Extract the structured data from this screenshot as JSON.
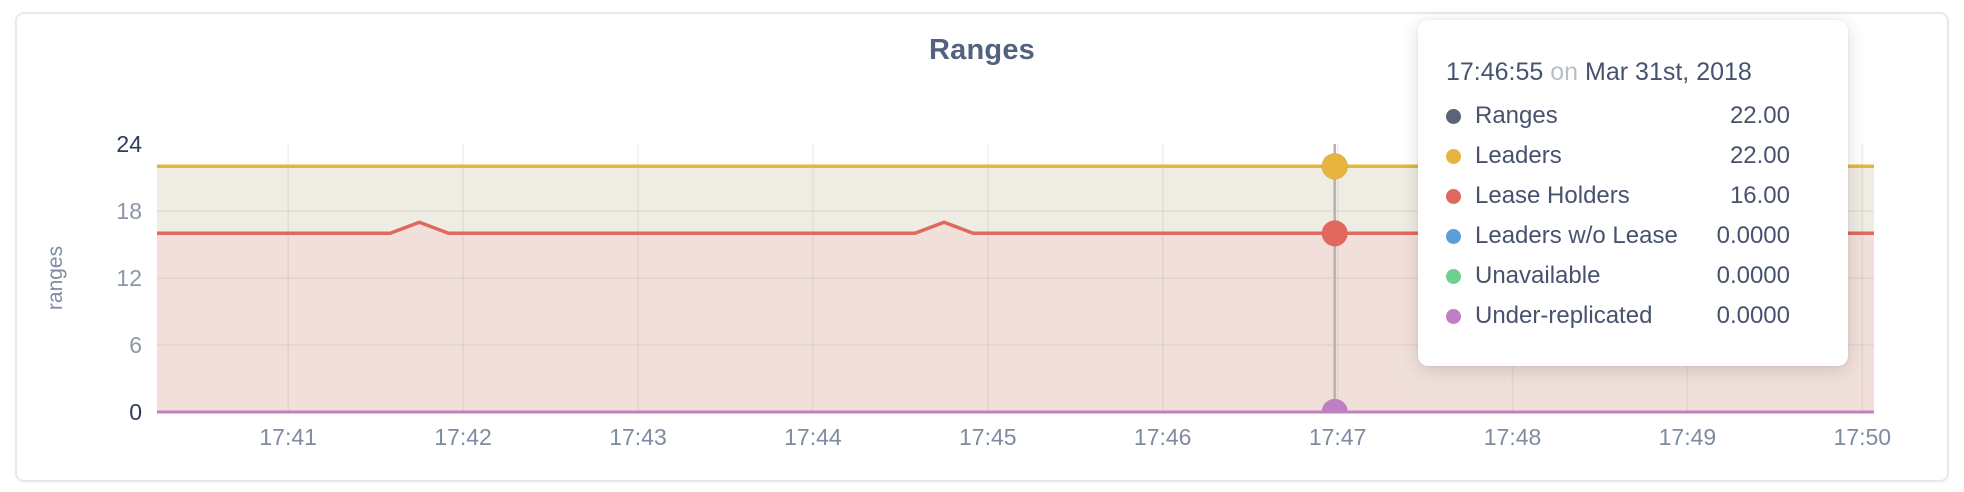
{
  "chart_data": {
    "type": "line",
    "title": "Ranges",
    "ylabel": "ranges",
    "ylim": [
      0,
      24
    ],
    "yticks": [
      0,
      6,
      12,
      18,
      24
    ],
    "grid": true,
    "x_axis": {
      "unit": "time-of-day",
      "domain_seconds_after_1740": [
        15,
        604
      ],
      "tick_seconds": [
        60,
        120,
        180,
        240,
        300,
        360,
        420,
        480,
        540,
        600
      ],
      "tick_labels": [
        "17:41",
        "17:42",
        "17:43",
        "17:44",
        "17:45",
        "17:46",
        "17:47",
        "17:48",
        "17:49",
        "17:50"
      ]
    },
    "series": [
      {
        "name": "Ranges",
        "color": "#5a6378",
        "points": [
          [
            15,
            22
          ],
          [
            604,
            22
          ]
        ]
      },
      {
        "name": "Leaders",
        "color": "#e6b43f",
        "points": [
          [
            15,
            22
          ],
          [
            604,
            22
          ]
        ]
      },
      {
        "name": "Lease Holders",
        "color": "#e0685e",
        "points": [
          [
            15,
            16
          ],
          [
            95,
            16
          ],
          [
            105,
            17
          ],
          [
            115,
            16
          ],
          [
            275,
            16
          ],
          [
            285,
            17
          ],
          [
            295,
            16
          ],
          [
            604,
            16
          ]
        ]
      },
      {
        "name": "Leaders w/o Lease",
        "color": "#5c9fd6",
        "points": [
          [
            15,
            0
          ],
          [
            604,
            0
          ]
        ]
      },
      {
        "name": "Unavailable",
        "color": "#6fd08f",
        "points": [
          [
            15,
            0
          ],
          [
            604,
            0
          ]
        ]
      },
      {
        "name": "Under-replicated",
        "color": "#c07fc5",
        "points": [
          [
            15,
            0
          ],
          [
            604,
            0
          ]
        ]
      }
    ],
    "areas": [
      {
        "series": "Leaders",
        "fill": "#efece3"
      },
      {
        "series": "Lease Holders",
        "fill": "#f1e0da"
      }
    ],
    "hover": {
      "x_seconds": 419,
      "line_color": "#b5b3b0",
      "dot_radius": 13
    },
    "axis_colors": {
      "tick": "#8d96a8",
      "tick_end": "#2f3d59",
      "x_tick": "#7f8ba1",
      "axis_label": "#7f8ba1",
      "gridline": "rgba(110,95,80,0.10)"
    },
    "legend_position": "tooltip-only"
  },
  "tooltip": {
    "time": "17:46:55",
    "on_word": "on",
    "date": "Mar 31st, 2018",
    "rows": [
      {
        "label": "Ranges",
        "value": "22.00",
        "color": "#5a6378"
      },
      {
        "label": "Leaders",
        "value": "22.00",
        "color": "#e6b43f"
      },
      {
        "label": "Lease Holders",
        "value": "16.00",
        "color": "#e0685e"
      },
      {
        "label": "Leaders w/o Lease",
        "value": "0.0000",
        "color": "#5c9fd6"
      },
      {
        "label": "Unavailable",
        "value": "0.0000",
        "color": "#6fd08f"
      },
      {
        "label": "Under-replicated",
        "value": "0.0000",
        "color": "#c07fc5"
      }
    ]
  }
}
